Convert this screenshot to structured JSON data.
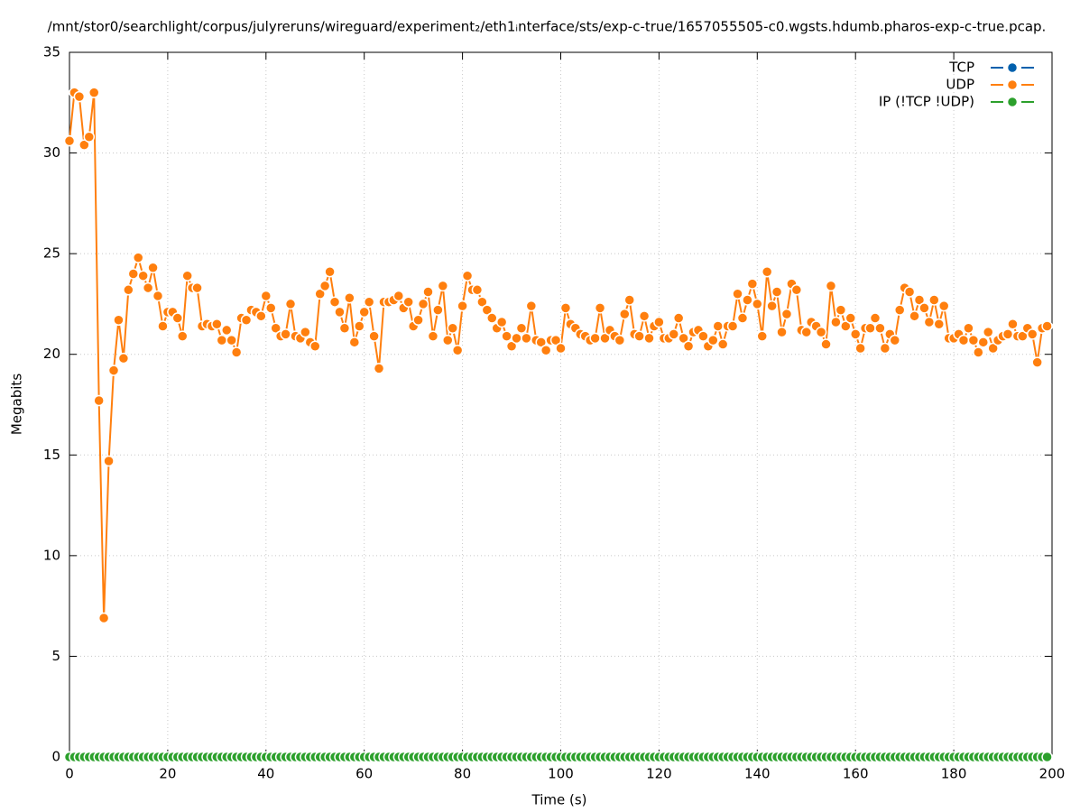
{
  "chart_data": {
    "type": "line",
    "title": "/mnt/stor0/searchlight/corpus/julyreruns/wireguard/experiment₂/eth1ᵢnterface/sts/exp-c-true/1657055505-c0.wgsts.hdumb.pharos-exp-c-true.pcap.",
    "x_label": "Time (s)",
    "y_label": "Megabits",
    "x": [
      0,
      1,
      2,
      3,
      4,
      5,
      6,
      7,
      8,
      9,
      10,
      11,
      12,
      13,
      14,
      15,
      16,
      17,
      18,
      19,
      20,
      21,
      22,
      23,
      24,
      25,
      26,
      27,
      28,
      29,
      30,
      31,
      32,
      33,
      34,
      35,
      36,
      37,
      38,
      39,
      40,
      41,
      42,
      43,
      44,
      45,
      46,
      47,
      48,
      49,
      50,
      51,
      52,
      53,
      54,
      55,
      56,
      57,
      58,
      59,
      60,
      61,
      62,
      63,
      64,
      65,
      66,
      67,
      68,
      69,
      70,
      71,
      72,
      73,
      74,
      75,
      76,
      77,
      78,
      79,
      80,
      81,
      82,
      83,
      84,
      85,
      86,
      87,
      88,
      89,
      90,
      91,
      92,
      93,
      94,
      95,
      96,
      97,
      98,
      99,
      100,
      101,
      102,
      103,
      104,
      105,
      106,
      107,
      108,
      109,
      110,
      111,
      112,
      113,
      114,
      115,
      116,
      117,
      118,
      119,
      120,
      121,
      122,
      123,
      124,
      125,
      126,
      127,
      128,
      129,
      130,
      131,
      132,
      133,
      134,
      135,
      136,
      137,
      138,
      139,
      140,
      141,
      142,
      143,
      144,
      145,
      146,
      147,
      148,
      149,
      150,
      151,
      152,
      153,
      154,
      155,
      156,
      157,
      158,
      159,
      160,
      161,
      162,
      163,
      164,
      165,
      166,
      167,
      168,
      169,
      170,
      171,
      172,
      173,
      174,
      175,
      176,
      177,
      178,
      179,
      180,
      181,
      182,
      183,
      184,
      185,
      186,
      187,
      188,
      189,
      190,
      191,
      192,
      193,
      194,
      195,
      196,
      197,
      198,
      199
    ],
    "series": [
      {
        "name": "TCP",
        "color": "#0060ad",
        "values": [
          0,
          0,
          0,
          0,
          0,
          0,
          0,
          0,
          0,
          0,
          0,
          0,
          0,
          0,
          0,
          0,
          0,
          0,
          0,
          0,
          0,
          0,
          0,
          0,
          0,
          0,
          0,
          0,
          0,
          0,
          0,
          0,
          0,
          0,
          0,
          0,
          0,
          0,
          0,
          0,
          0,
          0,
          0,
          0,
          0,
          0,
          0,
          0,
          0,
          0,
          0,
          0,
          0,
          0,
          0,
          0,
          0,
          0,
          0,
          0,
          0,
          0,
          0,
          0,
          0,
          0,
          0,
          0,
          0,
          0,
          0,
          0,
          0,
          0,
          0,
          0,
          0,
          0,
          0,
          0,
          0,
          0,
          0,
          0,
          0,
          0,
          0,
          0,
          0,
          0,
          0,
          0,
          0,
          0,
          0,
          0,
          0,
          0,
          0,
          0,
          0,
          0,
          0,
          0,
          0,
          0,
          0,
          0,
          0,
          0,
          0,
          0,
          0,
          0,
          0,
          0,
          0,
          0,
          0,
          0,
          0,
          0,
          0,
          0,
          0,
          0,
          0,
          0,
          0,
          0,
          0,
          0,
          0,
          0,
          0,
          0,
          0,
          0,
          0,
          0,
          0,
          0,
          0,
          0,
          0,
          0,
          0,
          0,
          0,
          0,
          0,
          0,
          0,
          0,
          0,
          0,
          0,
          0,
          0,
          0,
          0,
          0,
          0,
          0,
          0,
          0,
          0,
          0,
          0,
          0,
          0,
          0,
          0,
          0,
          0,
          0,
          0,
          0,
          0,
          0,
          0,
          0,
          0,
          0,
          0,
          0,
          0,
          0,
          0,
          0,
          0,
          0,
          0,
          0,
          0,
          0,
          0,
          0,
          0,
          0
        ]
      },
      {
        "name": "UDP",
        "color": "#ff7f0e",
        "values": [
          30.6,
          33.0,
          32.8,
          30.4,
          30.8,
          33.0,
          17.7,
          6.9,
          14.7,
          19.2,
          21.7,
          19.8,
          23.2,
          24.0,
          24.8,
          23.9,
          23.3,
          24.3,
          22.9,
          21.4,
          22.1,
          22.1,
          21.8,
          20.9,
          23.9,
          23.3,
          23.3,
          21.4,
          21.5,
          21.4,
          21.5,
          20.7,
          21.2,
          20.7,
          20.1,
          21.8,
          21.7,
          22.2,
          22.1,
          21.9,
          22.9,
          22.3,
          21.3,
          20.9,
          21.0,
          22.5,
          20.9,
          20.8,
          21.1,
          20.6,
          20.4,
          23.0,
          23.4,
          24.1,
          22.6,
          22.1,
          21.3,
          22.8,
          20.6,
          21.4,
          22.1,
          22.6,
          20.9,
          19.3,
          22.6,
          22.6,
          22.7,
          22.9,
          22.3,
          22.6,
          21.4,
          21.7,
          22.5,
          23.1,
          20.9,
          22.2,
          23.4,
          20.7,
          21.3,
          20.2,
          22.4,
          23.9,
          23.2,
          23.2,
          22.6,
          22.2,
          21.8,
          21.3,
          21.6,
          20.9,
          20.4,
          20.8,
          21.3,
          20.8,
          22.4,
          20.7,
          20.6,
          20.2,
          20.7,
          20.7,
          20.3,
          22.3,
          21.5,
          21.3,
          21.0,
          20.9,
          20.7,
          20.8,
          22.3,
          20.8,
          21.2,
          20.9,
          20.7,
          22.0,
          22.7,
          21.0,
          20.9,
          21.9,
          20.8,
          21.4,
          21.6,
          20.8,
          20.8,
          21.0,
          21.8,
          20.8,
          20.4,
          21.1,
          21.2,
          20.9,
          20.4,
          20.7,
          21.4,
          20.5,
          21.4,
          21.4,
          23.0,
          21.8,
          22.7,
          23.5,
          22.5,
          20.9,
          24.1,
          22.4,
          23.1,
          21.1,
          22.0,
          23.5,
          23.2,
          21.2,
          21.1,
          21.6,
          21.4,
          21.1,
          20.5,
          23.4,
          21.6,
          22.2,
          21.4,
          21.8,
          21.0,
          20.3,
          21.3,
          21.3,
          21.8,
          21.3,
          20.3,
          21.0,
          20.7,
          22.2,
          23.3,
          23.1,
          21.9,
          22.7,
          22.3,
          21.6,
          22.7,
          21.5,
          22.4,
          20.8,
          20.8,
          21.0,
          20.7,
          21.3,
          20.7,
          20.1,
          20.6,
          21.1,
          20.3,
          20.7,
          20.9,
          21.0,
          21.5,
          20.9,
          20.9,
          21.3,
          21.0,
          19.6,
          21.3,
          21.4
        ]
      },
      {
        "name": "IP (!TCP  !UDP)",
        "color": "#2ca02c",
        "values": [
          0,
          0,
          0,
          0,
          0,
          0,
          0,
          0,
          0,
          0,
          0,
          0,
          0,
          0,
          0,
          0,
          0,
          0,
          0,
          0,
          0,
          0,
          0,
          0,
          0,
          0,
          0,
          0,
          0,
          0,
          0,
          0,
          0,
          0,
          0,
          0,
          0,
          0,
          0,
          0,
          0,
          0,
          0,
          0,
          0,
          0,
          0,
          0,
          0,
          0,
          0,
          0,
          0,
          0,
          0,
          0,
          0,
          0,
          0,
          0,
          0,
          0,
          0,
          0,
          0,
          0,
          0,
          0,
          0,
          0,
          0,
          0,
          0,
          0,
          0,
          0,
          0,
          0,
          0,
          0,
          0,
          0,
          0,
          0,
          0,
          0,
          0,
          0,
          0,
          0,
          0,
          0,
          0,
          0,
          0,
          0,
          0,
          0,
          0,
          0,
          0,
          0,
          0,
          0,
          0,
          0,
          0,
          0,
          0,
          0,
          0,
          0,
          0,
          0,
          0,
          0,
          0,
          0,
          0,
          0,
          0,
          0,
          0,
          0,
          0,
          0,
          0,
          0,
          0,
          0,
          0,
          0,
          0,
          0,
          0,
          0,
          0,
          0,
          0,
          0,
          0,
          0,
          0,
          0,
          0,
          0,
          0,
          0,
          0,
          0,
          0,
          0,
          0,
          0,
          0,
          0,
          0,
          0,
          0,
          0,
          0,
          0,
          0,
          0,
          0,
          0,
          0,
          0,
          0,
          0,
          0,
          0,
          0,
          0,
          0,
          0,
          0,
          0,
          0,
          0,
          0,
          0,
          0,
          0,
          0,
          0,
          0,
          0,
          0,
          0,
          0,
          0,
          0,
          0,
          0,
          0,
          0,
          0,
          0,
          0
        ]
      }
    ],
    "xlim": [
      0,
      200
    ],
    "xticks": [
      0,
      20,
      40,
      60,
      80,
      100,
      120,
      140,
      160,
      180,
      200
    ],
    "ylim": [
      0,
      35
    ],
    "yticks": [
      0,
      5,
      10,
      15,
      20,
      25,
      30,
      35
    ],
    "grid": true,
    "legend": "top-right"
  }
}
